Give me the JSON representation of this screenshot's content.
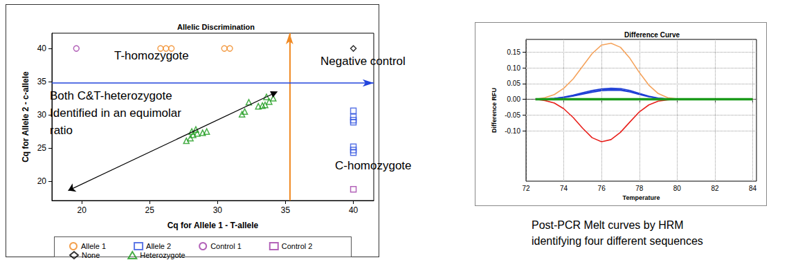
{
  "chart_data": [
    {
      "type": "scatter",
      "title": "Allelic Discrimination",
      "x_label": "Cq for Allele 1 - T-allele",
      "y_label": "Cq for Allele 2 - c-allele",
      "xlim": [
        17.8,
        41.5
      ],
      "ylim": [
        17.1,
        42.3
      ],
      "xticks": [
        20,
        25,
        30,
        35,
        40
      ],
      "yticks": [
        20,
        25,
        30,
        35,
        40
      ],
      "grid": false,
      "legend": "bottom",
      "series": [
        {
          "name": "Allele 1",
          "color": "#f08a24",
          "marker": "circle",
          "x": [
            25.8,
            26.2,
            26.6,
            30.5,
            30.9
          ],
          "values": [
            40,
            40,
            40,
            40,
            40
          ]
        },
        {
          "name": "Allele 2",
          "color": "#3355e0",
          "marker": "square",
          "x": [
            40,
            40,
            40,
            40,
            40,
            40,
            40
          ],
          "values": [
            30.6,
            29.7,
            29.2,
            28.9,
            25.2,
            24.7,
            24.3
          ]
        },
        {
          "name": "Control 1",
          "color": "#a03ca8",
          "marker": "circle",
          "x": [
            19.6
          ],
          "values": [
            40
          ]
        },
        {
          "name": "Control 2",
          "color": "#a03ca8",
          "marker": "square",
          "x": [
            40
          ],
          "values": [
            18.8
          ]
        },
        {
          "name": "None",
          "color": "#000000",
          "marker": "diamond",
          "x": [
            40
          ],
          "values": [
            40
          ]
        },
        {
          "name": "Heterozygote",
          "color": "#1a9a1a",
          "marker": "triangle",
          "x": [
            27.7,
            28.0,
            28.2,
            28.1,
            28.5,
            28.9,
            29.2,
            28.4,
            31.8,
            32.0,
            32.3,
            33.0,
            33.3,
            33.5,
            33.8,
            33.6,
            34.1
          ],
          "values": [
            26.1,
            26.5,
            27.0,
            27.5,
            27.2,
            27.3,
            27.5,
            27.8,
            30.1,
            30.5,
            31.9,
            31.3,
            31.4,
            31.5,
            32.0,
            32.7,
            32.5
          ]
        }
      ],
      "threshold_x": 35.3,
      "threshold_y": 34.8,
      "arrow": {
        "from": [
          19.0,
          18.6
        ],
        "to": [
          34.2,
          33.3
        ]
      },
      "annotations": [
        "T-homozygote",
        "Negative control",
        "Both C&T-heterozygote",
        "Identified in an equimolar",
        "ratio",
        "C-homozygote"
      ]
    },
    {
      "type": "line",
      "title": "Difference Curve",
      "x_label": "Temperature",
      "y_label": "Difference RFU",
      "x": [
        72.5,
        73,
        73.5,
        74,
        74.5,
        75,
        75.5,
        76,
        76.5,
        77,
        77.5,
        78,
        78.5,
        79,
        79.5,
        80,
        81,
        82,
        83,
        84
      ],
      "xlim": [
        72,
        84.2
      ],
      "xticks": [
        72,
        74,
        76,
        78,
        80,
        82,
        84
      ],
      "ylim": [
        -0.26,
        0.19
      ],
      "yticks": [
        {
          "value": -0.1,
          "label": "-0.10"
        },
        -0.05,
        {
          "value": 0,
          "label": "0.00"
        },
        0.05,
        {
          "value": 0.1,
          "label": "0.10"
        },
        0.15
      ],
      "grid": true,
      "series": [
        {
          "color": "#1f3fd6",
          "values": [
            0,
            0.001,
            0.003,
            0.007,
            0.013,
            0.021,
            0.028,
            0.033,
            0.035,
            0.034,
            0.028,
            0.019,
            0.01,
            0.004,
            0.001,
            0,
            0,
            0,
            0,
            0
          ]
        },
        {
          "color": "#1f3fd6",
          "values": [
            0,
            0.001,
            0.003,
            0.006,
            0.011,
            0.018,
            0.025,
            0.03,
            0.032,
            0.031,
            0.025,
            0.017,
            0.009,
            0.003,
            0.001,
            0,
            0,
            0,
            0,
            0
          ]
        },
        {
          "color": "#1f3fd6",
          "values": [
            0,
            0.001,
            0.002,
            0.005,
            0.01,
            0.016,
            0.022,
            0.027,
            0.029,
            0.028,
            0.023,
            0.015,
            0.008,
            0.003,
            0.001,
            0,
            0,
            0,
            0,
            0
          ]
        },
        {
          "color": "#f5a35c",
          "values": [
            0,
            0.005,
            0.015,
            0.035,
            0.065,
            0.105,
            0.145,
            0.172,
            0.178,
            0.165,
            0.13,
            0.085,
            0.045,
            0.018,
            0.005,
            0.001,
            0,
            0,
            0,
            0
          ]
        },
        {
          "color": "#e8201c",
          "values": [
            0,
            -0.004,
            -0.012,
            -0.03,
            -0.058,
            -0.092,
            -0.122,
            -0.135,
            -0.128,
            -0.105,
            -0.072,
            -0.04,
            -0.018,
            -0.006,
            -0.002,
            0,
            0,
            0,
            0,
            0
          ]
        },
        {
          "color": "#1a9a1a",
          "values": [
            0,
            0,
            0,
            0,
            0,
            0,
            0,
            0,
            0,
            0,
            0,
            0,
            0,
            0,
            0,
            0,
            0,
            0,
            0,
            0
          ]
        }
      ],
      "caption": [
        "Post-PCR Melt curves by HRM",
        "identifying four different sequences"
      ]
    }
  ]
}
